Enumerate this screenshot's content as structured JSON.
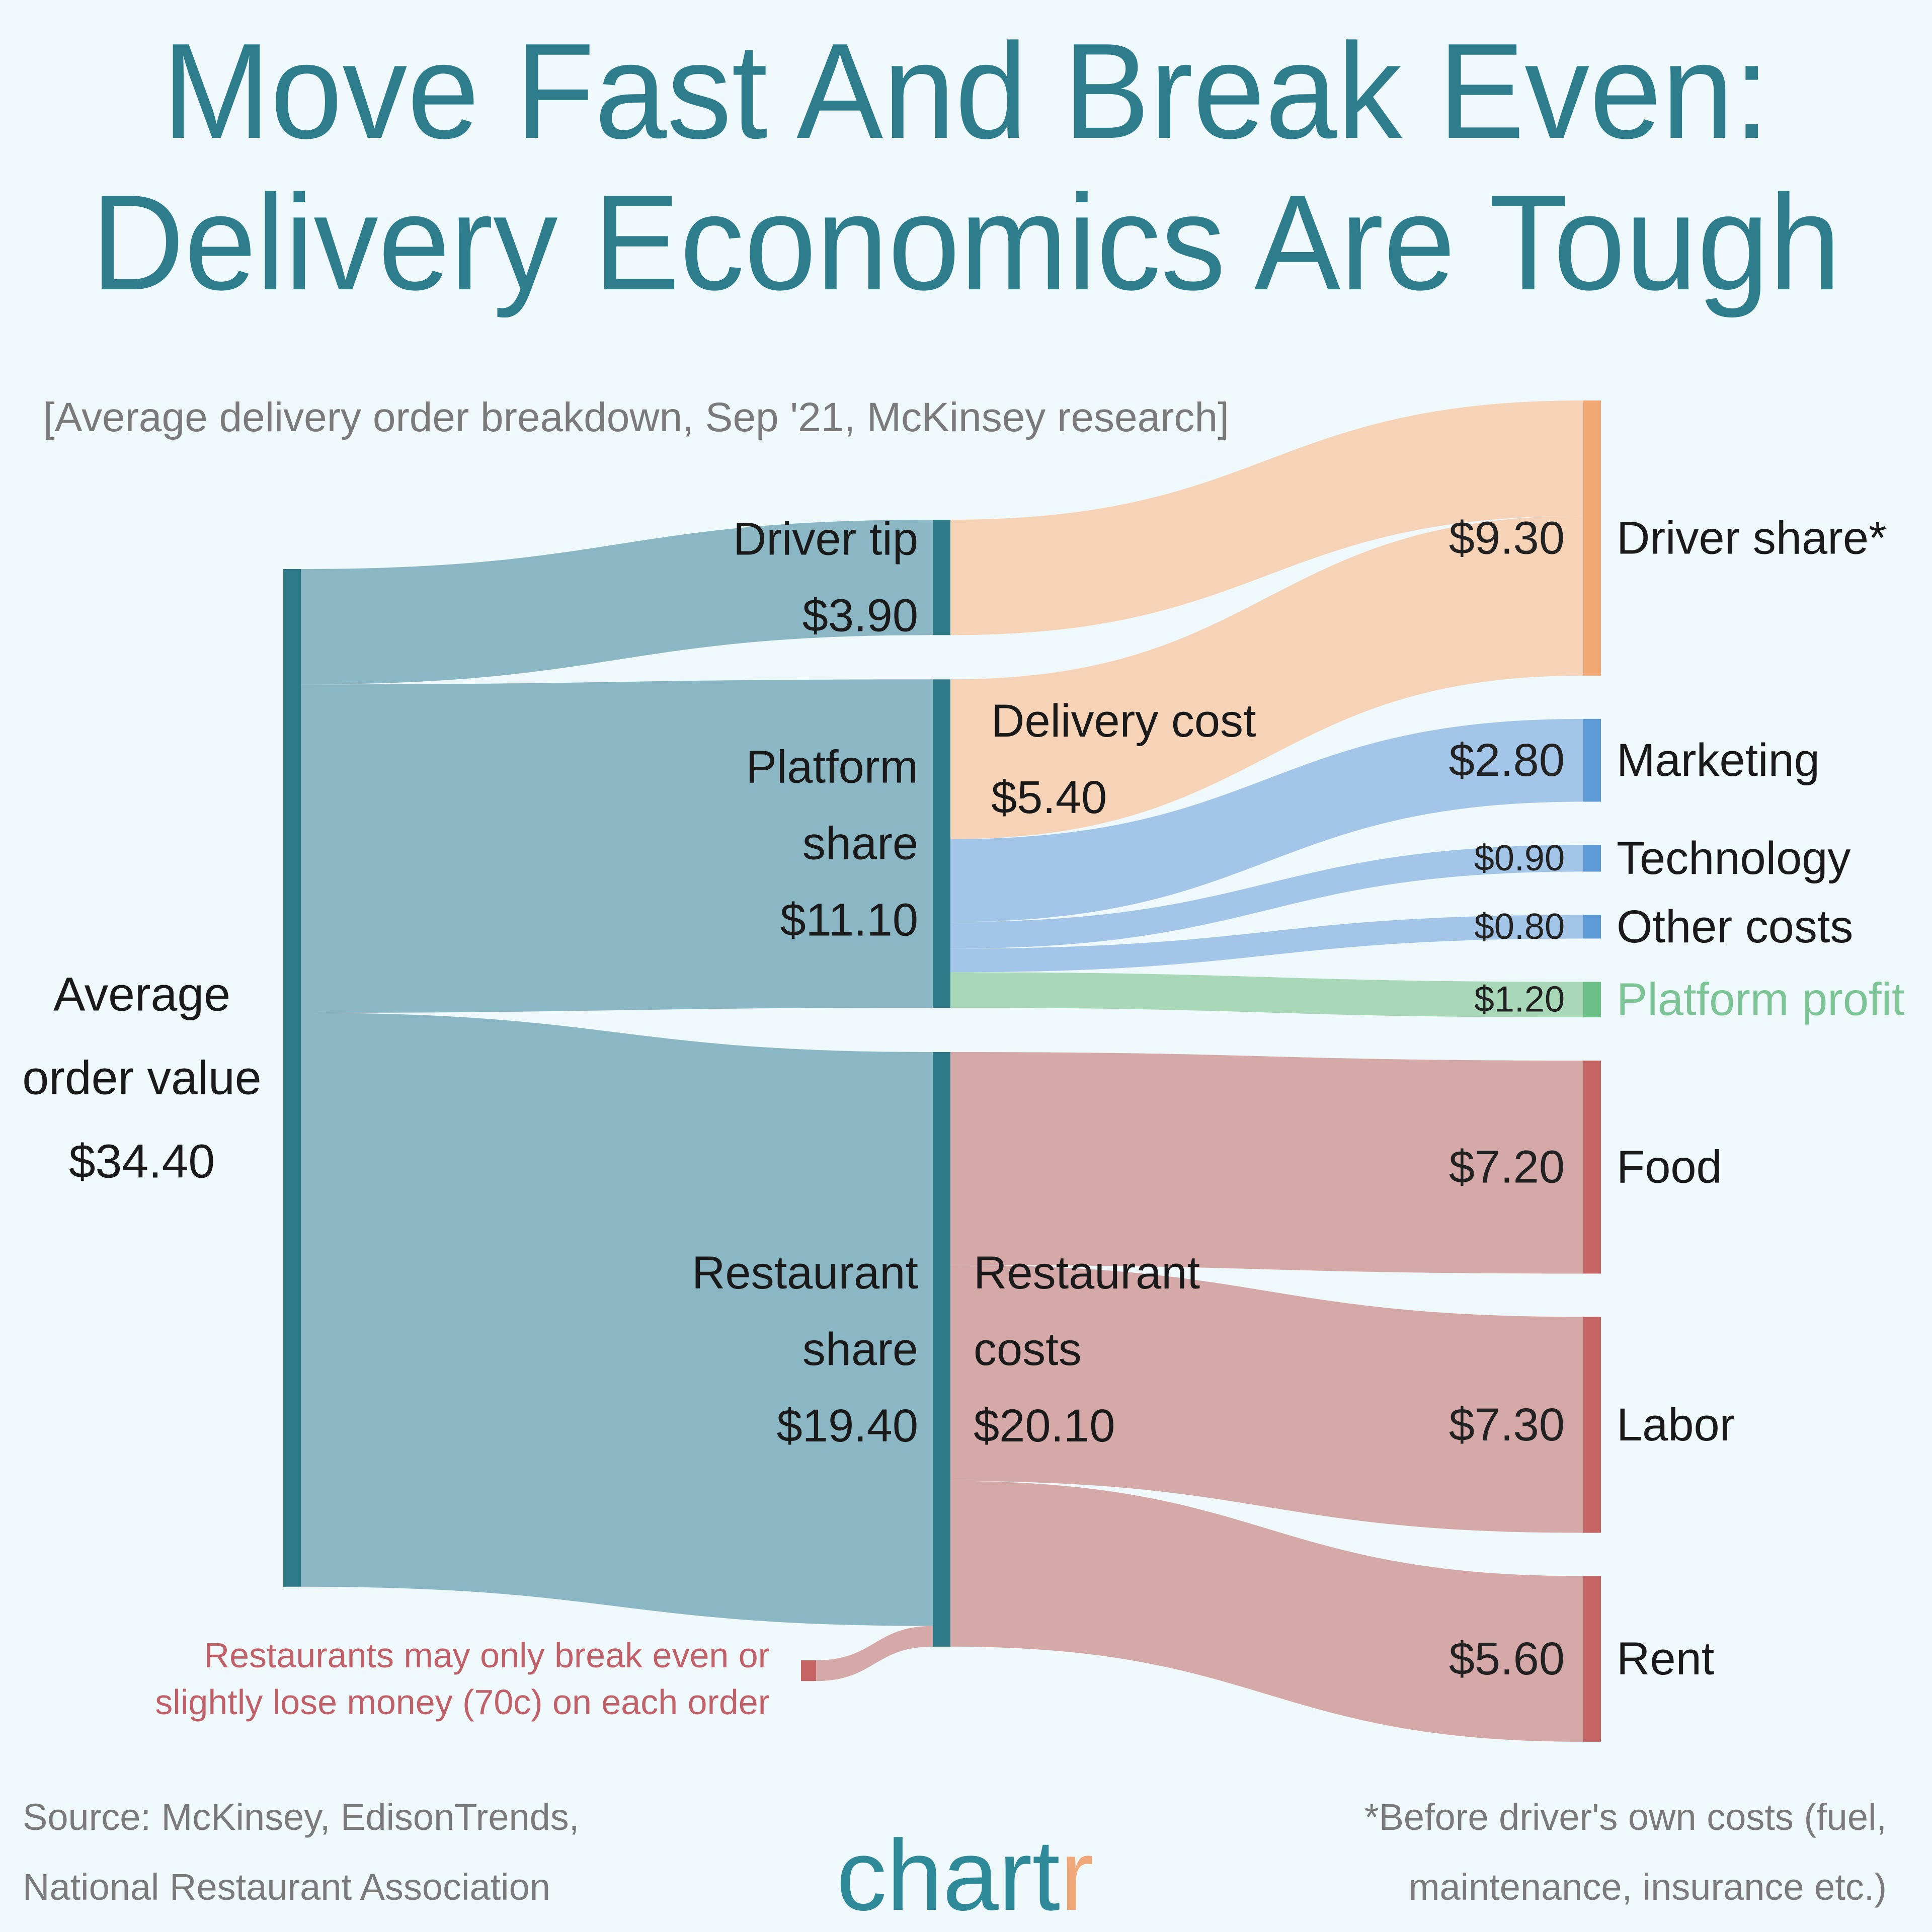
{
  "chart_data": {
    "type": "sankey",
    "title": [
      "Move Fast And Break Even:",
      "Delivery Economics Are Tough"
    ],
    "subtitle": "[Average delivery order breakdown, Sep '21, McKinsey research]",
    "nodes": [
      {
        "label": [
          "Average",
          "order value"
        ],
        "value": 34.4,
        "value_label": "$34.40",
        "column": 0,
        "color": "#2e7a88"
      },
      {
        "label": [
          "Driver tip"
        ],
        "value": 3.9,
        "value_label": "$3.90",
        "column": 1,
        "color": "#2e7a88"
      },
      {
        "label": [
          "Platform",
          "share"
        ],
        "value": 11.1,
        "value_label": "$11.10",
        "column": 1,
        "color": "#2e7a88"
      },
      {
        "label": [
          "Restaurant",
          "share"
        ],
        "value": 19.4,
        "value_label": "$19.40",
        "right_label": [
          "Restaurant",
          "costs"
        ],
        "right_value": 20.1,
        "right_value_label": "$20.10",
        "column": 1,
        "color": "#2e7a88"
      },
      {
        "label": [
          "Driver share*"
        ],
        "value": 9.3,
        "value_label": "$9.30",
        "column": 2,
        "color": "#f2a873"
      },
      {
        "label": [
          "Marketing"
        ],
        "value": 2.8,
        "value_label": "$2.80",
        "column": 2,
        "color": "#5e9bd6"
      },
      {
        "label": [
          "Technology"
        ],
        "value": 0.9,
        "value_label": "$0.90",
        "column": 2,
        "color": "#5e9bd6"
      },
      {
        "label": [
          "Other costs"
        ],
        "value": 0.8,
        "value_label": "$0.80",
        "column": 2,
        "color": "#5e9bd6"
      },
      {
        "label": [
          "Platform profit"
        ],
        "value": 1.2,
        "value_label": "$1.20",
        "column": 2,
        "color": "#6dbf88",
        "label_color": "#7cc496"
      },
      {
        "label": [
          "Food"
        ],
        "value": 7.2,
        "value_label": "$7.20",
        "column": 2,
        "color": "#c46464"
      },
      {
        "label": [
          "Labor"
        ],
        "value": 7.3,
        "value_label": "$7.30",
        "column": 2,
        "color": "#c46464"
      },
      {
        "label": [
          "Rent"
        ],
        "value": 5.6,
        "value_label": "$5.60",
        "column": 2,
        "color": "#c46464"
      },
      {
        "value": 0.7,
        "column": 0,
        "color": "#c46464"
      }
    ],
    "links": [
      {
        "source": 0,
        "target": 1,
        "value": 3.9,
        "color": "#8ab7c3"
      },
      {
        "source": 0,
        "target": 2,
        "value": 11.1,
        "color": "#8ab7c3"
      },
      {
        "source": 0,
        "target": 3,
        "value": 19.4,
        "color": "#8ab7c3"
      },
      {
        "source": 1,
        "target": 4,
        "value": 3.9,
        "color": "#f6d2b6"
      },
      {
        "source": 2,
        "target": 4,
        "value": 5.4,
        "color": "#f6d2b6",
        "label": [
          "Delivery cost"
        ],
        "value_label": "$5.40"
      },
      {
        "source": 2,
        "target": 5,
        "value": 2.8,
        "color": "#a3c6e8"
      },
      {
        "source": 2,
        "target": 6,
        "value": 0.9,
        "color": "#a3c6e8"
      },
      {
        "source": 2,
        "target": 7,
        "value": 0.8,
        "color": "#a3c6e8"
      },
      {
        "source": 2,
        "target": 8,
        "value": 1.2,
        "color": "#a8d8b8"
      },
      {
        "source": 3,
        "target": 9,
        "value": 7.2,
        "color": "#d4a9a8"
      },
      {
        "source": 3,
        "target": 10,
        "value": 7.3,
        "color": "#d4a9a8"
      },
      {
        "source": 3,
        "target": 11,
        "value": 5.6,
        "color": "#d4a9a8"
      },
      {
        "source": 12,
        "target": 3,
        "value": 0.7,
        "color": "#d4a9a8"
      }
    ],
    "annotation": [
      "Restaurants may only break even or",
      "slightly lose money (70c) on each order"
    ],
    "annotation_color": "#c0616a",
    "source": [
      "Source: McKinsey, EdisonTrends,",
      "National Restaurant Association"
    ],
    "footnote": [
      "*Before driver's own costs (fuel,",
      "maintenance, insurance etc.)"
    ],
    "logo": [
      "chart",
      "r"
    ]
  }
}
